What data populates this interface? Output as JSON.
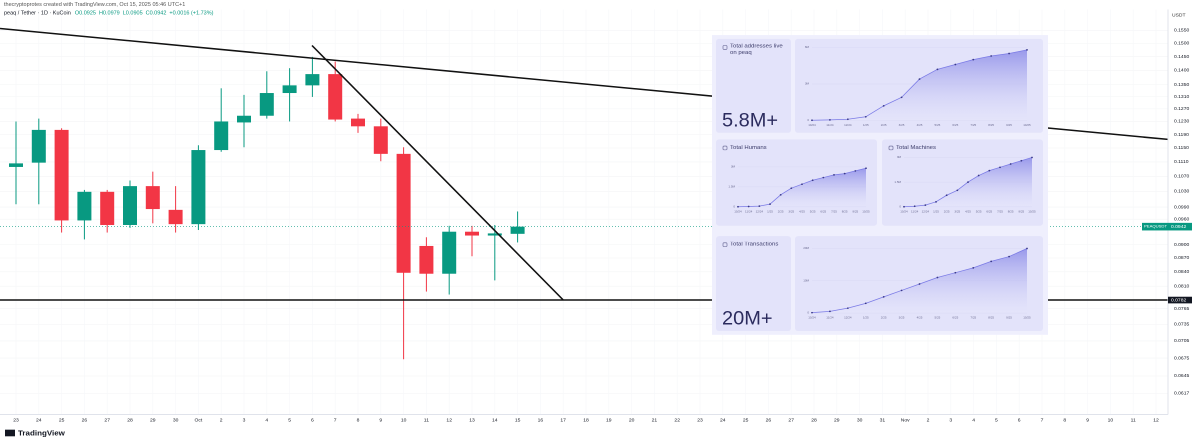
{
  "header": {
    "attribution": "thecryptoprotes created with TradingView.com, Oct 15, 2025 05:46 UTC+1",
    "symbol": "peaq / Tether · 1D · KuCoin",
    "ohlc": [
      "O0.0925",
      "H0.0979",
      "L0.0905",
      "C0.0942",
      "+0.0016 (+1.73%)"
    ],
    "axis_unit": "USDT",
    "logo": "TradingView"
  },
  "chart_data": [
    {
      "type": "candlestick",
      "log_scale": true,
      "grid": true,
      "up_color": "#089981",
      "down_color": "#f23645",
      "categories": [
        "23",
        "24",
        "25",
        "26",
        "27",
        "28",
        "29",
        "30",
        "Oct",
        "2",
        "3",
        "4",
        "5",
        "6",
        "7",
        "8",
        "9",
        "10",
        "11",
        "12",
        "13",
        "14",
        "15",
        "16",
        "17",
        "18",
        "19",
        "20",
        "21",
        "22",
        "23",
        "24",
        "25",
        "26",
        "27",
        "28",
        "29",
        "30",
        "31",
        "Nov",
        "2",
        "3",
        "4",
        "5",
        "6",
        "7",
        "8",
        "9",
        "10",
        "11",
        "12"
      ],
      "open": [
        0.1096,
        0.1108,
        0.1204,
        0.0957,
        0.1029,
        0.0946,
        0.1044,
        0.0983,
        0.0948,
        0.1144,
        0.1227,
        0.1248,
        0.1322,
        0.1348,
        0.1387,
        0.1239,
        0.1215,
        0.1133,
        0.0897,
        0.0836,
        0.093,
        0.0921,
        0.0925,
        null,
        null,
        null,
        null,
        null,
        null,
        null,
        null,
        null,
        null,
        null,
        null,
        null,
        null,
        null,
        null,
        null,
        null,
        null,
        null,
        null,
        null,
        null,
        null,
        null,
        null,
        null,
        null
      ],
      "high": [
        0.123,
        0.1239,
        0.1209,
        0.1034,
        0.1034,
        0.1059,
        0.1083,
        0.1044,
        0.1158,
        0.1338,
        0.1316,
        0.1397,
        0.1408,
        0.1449,
        0.1432,
        0.1254,
        0.1239,
        0.1152,
        0.0917,
        0.0944,
        0.0944,
        0.0946,
        0.0979,
        null,
        null,
        null,
        null,
        null,
        null,
        null,
        null,
        null,
        null,
        null,
        null,
        null,
        null,
        null,
        null,
        null,
        null,
        null,
        null,
        null,
        null,
        null,
        null,
        null,
        null,
        null,
        null
      ],
      "low": [
        0.0997,
        0.0997,
        0.0928,
        0.0912,
        0.0928,
        0.0939,
        0.095,
        0.0928,
        0.0934,
        0.1139,
        0.1152,
        0.1239,
        0.123,
        0.1309,
        0.123,
        0.1195,
        0.1112,
        0.0673,
        0.0799,
        0.0793,
        0.0874,
        0.0822,
        0.0905,
        null,
        null,
        null,
        null,
        null,
        null,
        null,
        null,
        null,
        null,
        null,
        null,
        null,
        null,
        null,
        null,
        null,
        null,
        null,
        null,
        null,
        null,
        null,
        null,
        null,
        null,
        null,
        null
      ],
      "close": [
        0.1106,
        0.1204,
        0.0957,
        0.1029,
        0.0946,
        0.1044,
        0.0985,
        0.0948,
        0.1144,
        0.123,
        0.1248,
        0.1322,
        0.1348,
        0.1387,
        0.1236,
        0.1215,
        0.1133,
        0.0838,
        0.0836,
        0.093,
        0.0921,
        0.0926,
        0.0942,
        null,
        null,
        null,
        null,
        null,
        null,
        null,
        null,
        null,
        null,
        null,
        null,
        null,
        null,
        null,
        null,
        null,
        null,
        null,
        null,
        null,
        null,
        null,
        null,
        null,
        null,
        null,
        null
      ],
      "ylim": [
        0.0585,
        0.1634
      ],
      "yticks": [
        {
          "value": 0.155,
          "label": "0.1550"
        },
        {
          "value": 0.15,
          "label": "0.1500"
        },
        {
          "value": 0.145,
          "label": "0.1450"
        },
        {
          "value": 0.14,
          "label": "0.1400"
        },
        {
          "value": 0.135,
          "label": "0.1350"
        },
        {
          "value": 0.131,
          "label": "0.1310"
        },
        {
          "value": 0.127,
          "label": "0.1270"
        },
        {
          "value": 0.123,
          "label": "0.1230"
        },
        {
          "value": 0.119,
          "label": "0.1190"
        },
        {
          "value": 0.115,
          "label": "0.1150"
        },
        {
          "value": 0.111,
          "label": "0.1110"
        },
        {
          "value": 0.107,
          "label": "0.1070"
        },
        {
          "value": 0.103,
          "label": "0.1030"
        },
        {
          "value": 0.099,
          "label": "0.0990"
        },
        {
          "value": 0.096,
          "label": "0.0960"
        },
        {
          "value": 0.09,
          "label": "0.0900"
        },
        {
          "value": 0.087,
          "label": "0.0870"
        },
        {
          "value": 0.084,
          "label": "0.0840"
        },
        {
          "value": 0.081,
          "label": "0.0810"
        },
        {
          "value": 0.0765,
          "label": "0.0765"
        },
        {
          "value": 0.0735,
          "label": "0.0735"
        },
        {
          "value": 0.0705,
          "label": "0.0705"
        },
        {
          "value": 0.0675,
          "label": "0.0675"
        },
        {
          "value": 0.0645,
          "label": "0.0645"
        },
        {
          "value": 0.0617,
          "label": "0.0617"
        }
      ],
      "horizontal_line": {
        "value": 0.0782,
        "label": "0.0782"
      },
      "current_price": {
        "value": 0.0942,
        "label": "0.0942",
        "symbol": "PEAQUSDT"
      }
    },
    {
      "type": "area",
      "title": "Total addresses live on peaq",
      "headline": "5.8M+",
      "color": "#7b7be6",
      "categories": [
        "10/24",
        "11/24",
        "12/24",
        "1/25",
        "2/25",
        "3/25",
        "4/25",
        "5/25",
        "6/25",
        "7/25",
        "8/25",
        "9/25",
        "10/25"
      ],
      "values": [
        0.02,
        0.05,
        0.1,
        0.3,
        1.2,
        1.9,
        3.4,
        4.2,
        4.6,
        5.0,
        5.3,
        5.5,
        5.8
      ],
      "ylim": [
        0,
        6
      ],
      "yticks": [
        0,
        {
          "value": 3,
          "label": "3M"
        },
        {
          "value": 6,
          "label": "6M"
        }
      ]
    },
    {
      "type": "area",
      "title": "Total Humans",
      "color": "#7b7be6",
      "categories": [
        "10/24",
        "11/24",
        "12/24",
        "1/25",
        "2/25",
        "3/25",
        "4/25",
        "5/25",
        "6/25",
        "7/25",
        "8/25",
        "9/25",
        "10/25"
      ],
      "values": [
        0,
        0.02,
        0.05,
        0.2,
        0.9,
        1.4,
        1.7,
        2.0,
        2.2,
        2.4,
        2.5,
        2.7,
        2.9
      ],
      "ylim": [
        0,
        3
      ],
      "yticks": [
        0,
        {
          "value": 1.5,
          "label": "1.5M"
        },
        {
          "value": 3,
          "label": "3M"
        }
      ]
    },
    {
      "type": "area",
      "title": "Total Machines",
      "color": "#7b7be6",
      "categories": [
        "10/24",
        "11/24",
        "12/24",
        "1/25",
        "2/25",
        "3/25",
        "4/25",
        "5/25",
        "6/25",
        "7/25",
        "8/25",
        "9/25",
        "10/25"
      ],
      "values": [
        0,
        0.03,
        0.1,
        0.3,
        0.7,
        1.0,
        1.5,
        1.9,
        2.2,
        2.4,
        2.6,
        2.8,
        3.0
      ],
      "ylim": [
        0,
        3
      ],
      "yticks": [
        0,
        {
          "value": 1.5,
          "label": "1.5M"
        },
        {
          "value": 3,
          "label": "3M"
        }
      ]
    },
    {
      "type": "area",
      "title": "Total Transactions",
      "headline": "20M+",
      "color": "#7b7be6",
      "categories": [
        "10/24",
        "11/24",
        "12/24",
        "1/25",
        "2/25",
        "3/25",
        "4/25",
        "5/25",
        "6/25",
        "7/25",
        "8/25",
        "9/25",
        "10/25"
      ],
      "values": [
        0.1,
        0.5,
        1.5,
        3,
        5,
        7,
        9,
        11,
        12.5,
        14,
        16,
        17.5,
        20
      ],
      "ylim": [
        0,
        20
      ],
      "yticks": [
        0,
        {
          "value": 10,
          "label": "10M"
        },
        {
          "value": 20,
          "label": "20M"
        }
      ]
    }
  ]
}
